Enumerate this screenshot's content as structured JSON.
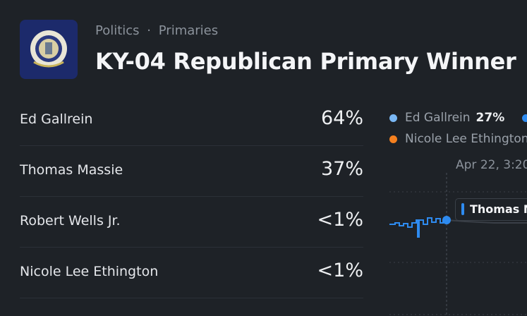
{
  "header": {
    "breadcrumb": [
      "Politics",
      "Primaries"
    ],
    "separator": "·",
    "title": "KY-04 Republican Primary Winner"
  },
  "outcomes": [
    {
      "name": "Ed Gallrein",
      "chance": "64%"
    },
    {
      "name": "Thomas Massie",
      "chance": "37%"
    },
    {
      "name": "Robert Wells Jr.",
      "chance": "<1%"
    },
    {
      "name": "Nicole Lee Ethington",
      "chance": "<1%"
    }
  ],
  "chart": {
    "legend": [
      {
        "name": "Ed Gallrein",
        "value": "27%",
        "color": "#7ab8f5"
      },
      {
        "name": "Nicole Lee Ethington",
        "color": "#f5801f"
      }
    ],
    "hover_time": "Apr 22, 3:20",
    "tooltip": "Thomas Massie"
  }
}
